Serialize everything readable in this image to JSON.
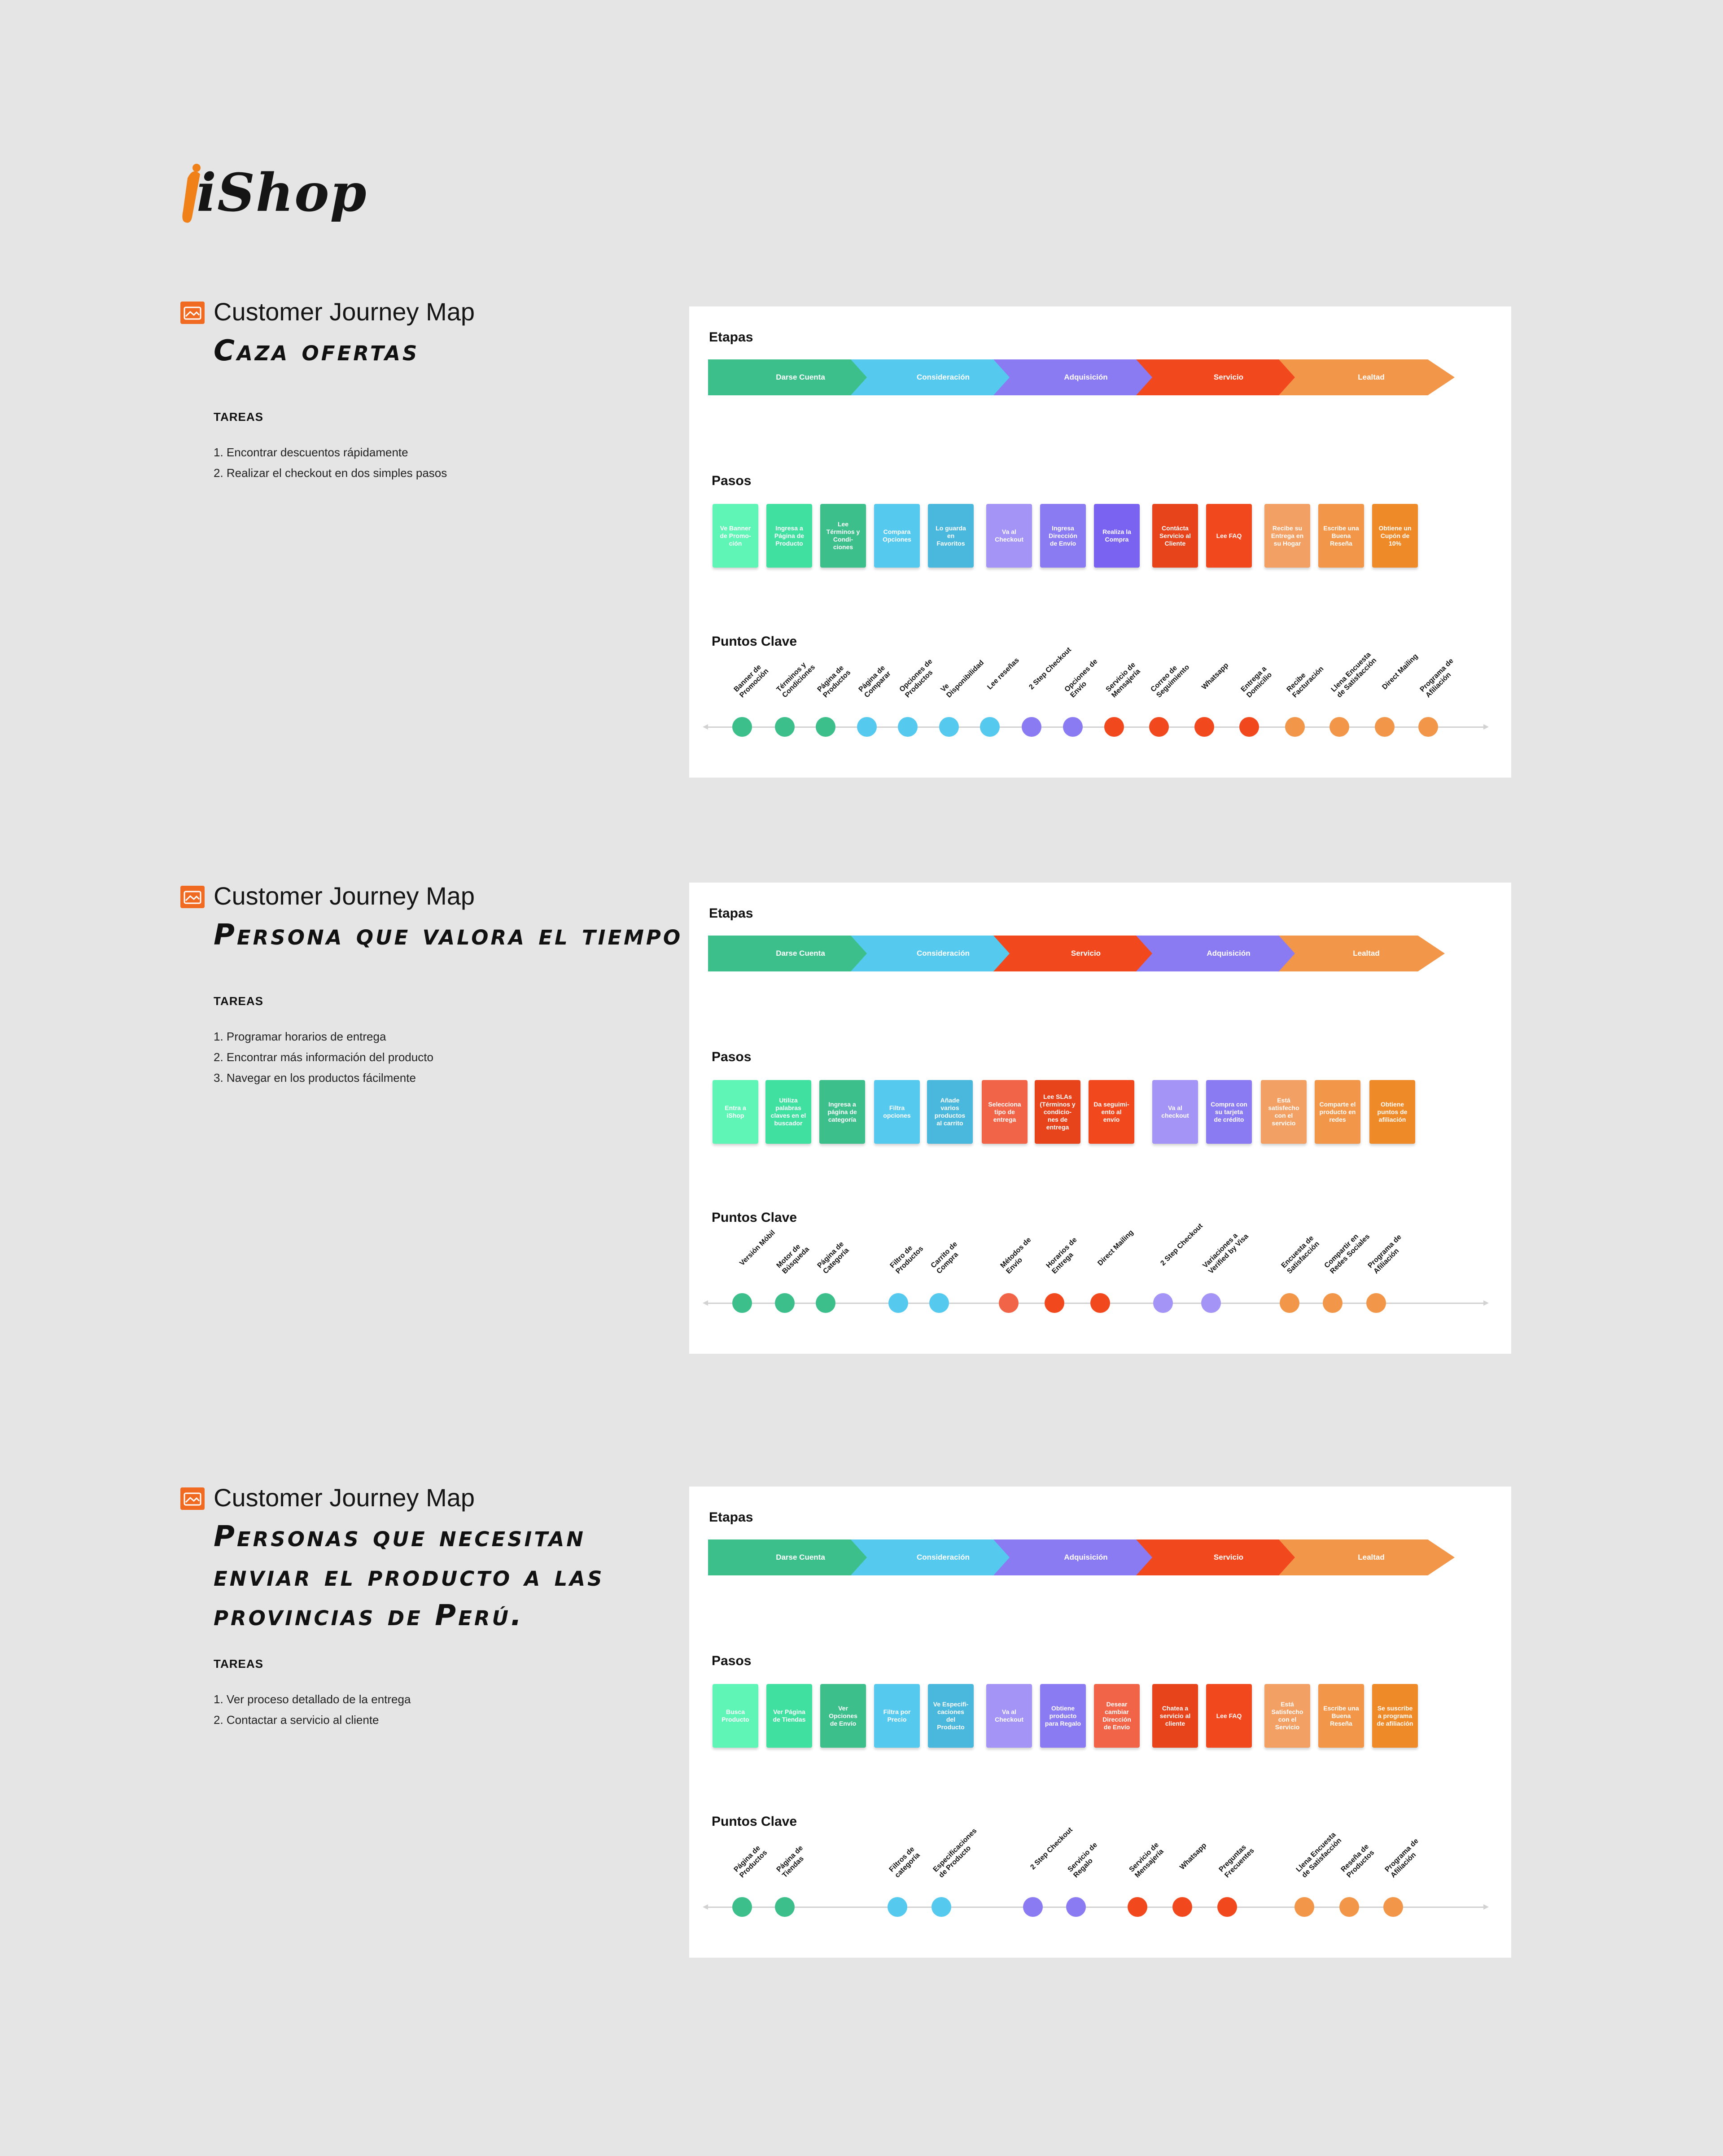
{
  "brand": {
    "name": "iShop",
    "accent": "#f08018"
  },
  "palette": {
    "mint": "#5ff5b6",
    "teal": "#3fc98f",
    "green": "#3cbf8a",
    "sky": "#56c9ef",
    "cyan": "#4ab8dc",
    "lavender": "#a394f5",
    "violet": "#8b7bf2",
    "purple": "#7a63f0",
    "red": "#f2481e",
    "salmon": "#f26448",
    "tomato": "#e8441c",
    "peach": "#f2a064",
    "orange": "#f2964a",
    "amber": "#ef8a28"
  },
  "labels": {
    "etapas": "Etapas",
    "pasos": "Pasos",
    "puntos": "Puntos Clave",
    "tareas": "TAREAS",
    "cjm": "Customer Journey Map"
  },
  "maps": [
    {
      "persona": "Caza ofertas",
      "tasks": [
        "1. Encontrar descuentos rápidamente",
        "2. Realizar el checkout en dos simples pasos"
      ],
      "stages": [
        {
          "label": "Darse Cuenta",
          "color": "#3cbf8a"
        },
        {
          "label": "Consideración",
          "color": "#56c9ef"
        },
        {
          "label": "Adquisición",
          "color": "#8b7bf2"
        },
        {
          "label": "Servicio",
          "color": "#f2481e"
        },
        {
          "label": "Lealtad",
          "color": "#f2964a"
        }
      ],
      "steps": [
        {
          "text": "Ve Banner de Promo- ción",
          "color": "#5ff5b6"
        },
        {
          "text": "Ingresa a Página de Producto",
          "color": "#3fe0a0"
        },
        {
          "text": "Lee Términos y Condi- ciones",
          "color": "#3cbf8a"
        },
        {
          "text": "Compara Opciones",
          "color": "#56c9ef"
        },
        {
          "text": "Lo guarda en Favoritos",
          "color": "#4ab8dc"
        },
        {
          "text": "Va al Checkout",
          "color": "#a394f5"
        },
        {
          "text": "Ingresa Dirección de Envío",
          "color": "#8b7bf2"
        },
        {
          "text": "Realiza la Compra",
          "color": "#7a63f0"
        },
        {
          "text": "Contácta Servicio al Cliente",
          "color": "#e8441c"
        },
        {
          "text": "Lee FAQ",
          "color": "#f2481e"
        },
        {
          "text": "Recibe su Entrega en su Hogar",
          "color": "#f2a064"
        },
        {
          "text": "Escribe una Buena Reseña",
          "color": "#f2964a"
        },
        {
          "text": "Obtiene un Cupón de 10%",
          "color": "#ef8a28"
        }
      ],
      "keypoints": [
        {
          "label": "Banner de Promoción",
          "color": "#3cbf8a"
        },
        {
          "label": "Términos y Condiciones",
          "color": "#3cbf8a"
        },
        {
          "label": "Página de Productos",
          "color": "#3cbf8a"
        },
        {
          "label": "Página de Comparar",
          "color": "#56c9ef"
        },
        {
          "label": "Opciones de Productos",
          "color": "#56c9ef"
        },
        {
          "label": "Ve Disponibilidad",
          "color": "#56c9ef"
        },
        {
          "label": "Lee reseñas",
          "color": "#56c9ef"
        },
        {
          "label": "2 Step Checkout",
          "color": "#8b7bf2"
        },
        {
          "label": "Opciones de Envío",
          "color": "#8b7bf2"
        },
        {
          "label": "Servicio de Mensajería",
          "color": "#f2481e"
        },
        {
          "label": "Correo de Seguimiento",
          "color": "#f2481e"
        },
        {
          "label": "Whatsapp",
          "color": "#f2481e"
        },
        {
          "label": "Entrega a Domicilio",
          "color": "#f2481e"
        },
        {
          "label": "Recibe Facturación",
          "color": "#f2964a"
        },
        {
          "label": "Llena Encuesta de Satisfacción",
          "color": "#f2964a"
        },
        {
          "label": "Direct Mailing",
          "color": "#f2964a"
        },
        {
          "label": "Programa de Afiliación",
          "color": "#f2964a"
        }
      ]
    },
    {
      "persona": "Persona que valora el tiempo",
      "tasks": [
        "1. Programar horarios de entrega",
        "2. Encontrar más información del producto",
        "3. Navegar en los productos fácilmente"
      ],
      "stages": [
        {
          "label": "Darse Cuenta",
          "color": "#3cbf8a"
        },
        {
          "label": "Consideración",
          "color": "#56c9ef"
        },
        {
          "label": "Servicio",
          "color": "#f2481e"
        },
        {
          "label": "Adquisición",
          "color": "#8b7bf2"
        },
        {
          "label": "Lealtad",
          "color": "#f2964a"
        }
      ],
      "steps": [
        {
          "text": "Entra a iShop",
          "color": "#5ff5b6"
        },
        {
          "text": "Utiliza palabras claves en el buscador",
          "color": "#3fe0a0"
        },
        {
          "text": "Ingresa a página de categoría",
          "color": "#3cbf8a"
        },
        {
          "text": "Filtra opciones",
          "color": "#56c9ef"
        },
        {
          "text": "Añade varios productos al carrito",
          "color": "#4ab8dc"
        },
        {
          "text": "Selecciona tipo de entrega",
          "color": "#f26448"
        },
        {
          "text": "Lee SLAs (Términos y condicio- nes de entrega",
          "color": "#e8441c"
        },
        {
          "text": "Da seguimi- ento al envío",
          "color": "#f2481e"
        },
        {
          "text": "Va al checkout",
          "color": "#a394f5"
        },
        {
          "text": "Compra con su tarjeta de crédito",
          "color": "#8b7bf2"
        },
        {
          "text": "Está satisfecho con el servicio",
          "color": "#f2a064"
        },
        {
          "text": "Comparte el producto en redes",
          "color": "#f2964a"
        },
        {
          "text": "Obtiene puntos de afiliación",
          "color": "#ef8a28"
        }
      ],
      "keypoints": [
        {
          "label": "Versión Móbil",
          "color": "#3cbf8a"
        },
        {
          "label": "Motor de Búsqueda",
          "color": "#3cbf8a"
        },
        {
          "label": "Página de Categoría",
          "color": "#3cbf8a"
        },
        {
          "label": "Filtro de Productos",
          "color": "#56c9ef"
        },
        {
          "label": "Carrito de Compra",
          "color": "#56c9ef"
        },
        {
          "label": "Métodos de Envío",
          "color": "#f26448"
        },
        {
          "label": "Horarios de Entrega",
          "color": "#f2481e"
        },
        {
          "label": "Direct Mailing",
          "color": "#f2481e"
        },
        {
          "label": "2 Step Checkout",
          "color": "#a394f5"
        },
        {
          "label": "Variaciones a Verified by Visa",
          "color": "#a394f5"
        },
        {
          "label": "Encuesta de Satisfacción",
          "color": "#f2964a"
        },
        {
          "label": "Compartir en Redes Sociales",
          "color": "#f2964a"
        },
        {
          "label": "Programa de Afiliación",
          "color": "#f2964a"
        }
      ]
    },
    {
      "persona": "Personas que necesitan enviar el producto a las provincias de Perú.",
      "tasks": [
        "1. Ver proceso detallado de la entrega",
        "2. Contactar a servicio al cliente"
      ],
      "stages": [
        {
          "label": "Darse Cuenta",
          "color": "#3cbf8a"
        },
        {
          "label": "Consideración",
          "color": "#56c9ef"
        },
        {
          "label": "Adquisición",
          "color": "#8b7bf2"
        },
        {
          "label": "Servicio",
          "color": "#f2481e"
        },
        {
          "label": "Lealtad",
          "color": "#f2964a"
        }
      ],
      "steps": [
        {
          "text": "Busca Producto",
          "color": "#5ff5b6"
        },
        {
          "text": "Ver Página de Tiendas",
          "color": "#3fe0a0"
        },
        {
          "text": "Ver Opciones de Envío",
          "color": "#3cbf8a"
        },
        {
          "text": "Filtra por Precio",
          "color": "#56c9ef"
        },
        {
          "text": "Ve Especifi- caciones del Producto",
          "color": "#4ab8dc"
        },
        {
          "text": "Va al Checkout",
          "color": "#a394f5"
        },
        {
          "text": "Obtiene producto para Regalo",
          "color": "#8b7bf2"
        },
        {
          "text": "Desear cambiar Dirección de Envío",
          "color": "#f26448"
        },
        {
          "text": "Chatea a servicio al cliente",
          "color": "#e8441c"
        },
        {
          "text": "Lee FAQ",
          "color": "#f2481e"
        },
        {
          "text": "Está Satisfecho con el Servicio",
          "color": "#f2a064"
        },
        {
          "text": "Escribe una Buena Reseña",
          "color": "#f2964a"
        },
        {
          "text": "Se suscribe a programa de afiliación",
          "color": "#ef8a28"
        }
      ],
      "keypoints": [
        {
          "label": "Página de Productos",
          "color": "#3cbf8a"
        },
        {
          "label": "Página de Tiendas",
          "color": "#3cbf8a"
        },
        {
          "label": "Filtros de categoría",
          "color": "#56c9ef"
        },
        {
          "label": "Especificaciones de Producto",
          "color": "#56c9ef"
        },
        {
          "label": "2 Step Checkout",
          "color": "#8b7bf2"
        },
        {
          "label": "Servicio de Regalo",
          "color": "#8b7bf2"
        },
        {
          "label": "Servicio de Mensajería",
          "color": "#f2481e"
        },
        {
          "label": "Whatsapp",
          "color": "#f2481e"
        },
        {
          "label": "Preguntas Frecuentes",
          "color": "#f2481e"
        },
        {
          "label": "Llena Encuesta de Satisfacción",
          "color": "#f2964a"
        },
        {
          "label": "Reseña de Productos",
          "color": "#f2964a"
        },
        {
          "label": "Programa de Afiliación",
          "color": "#f2964a"
        }
      ]
    }
  ]
}
